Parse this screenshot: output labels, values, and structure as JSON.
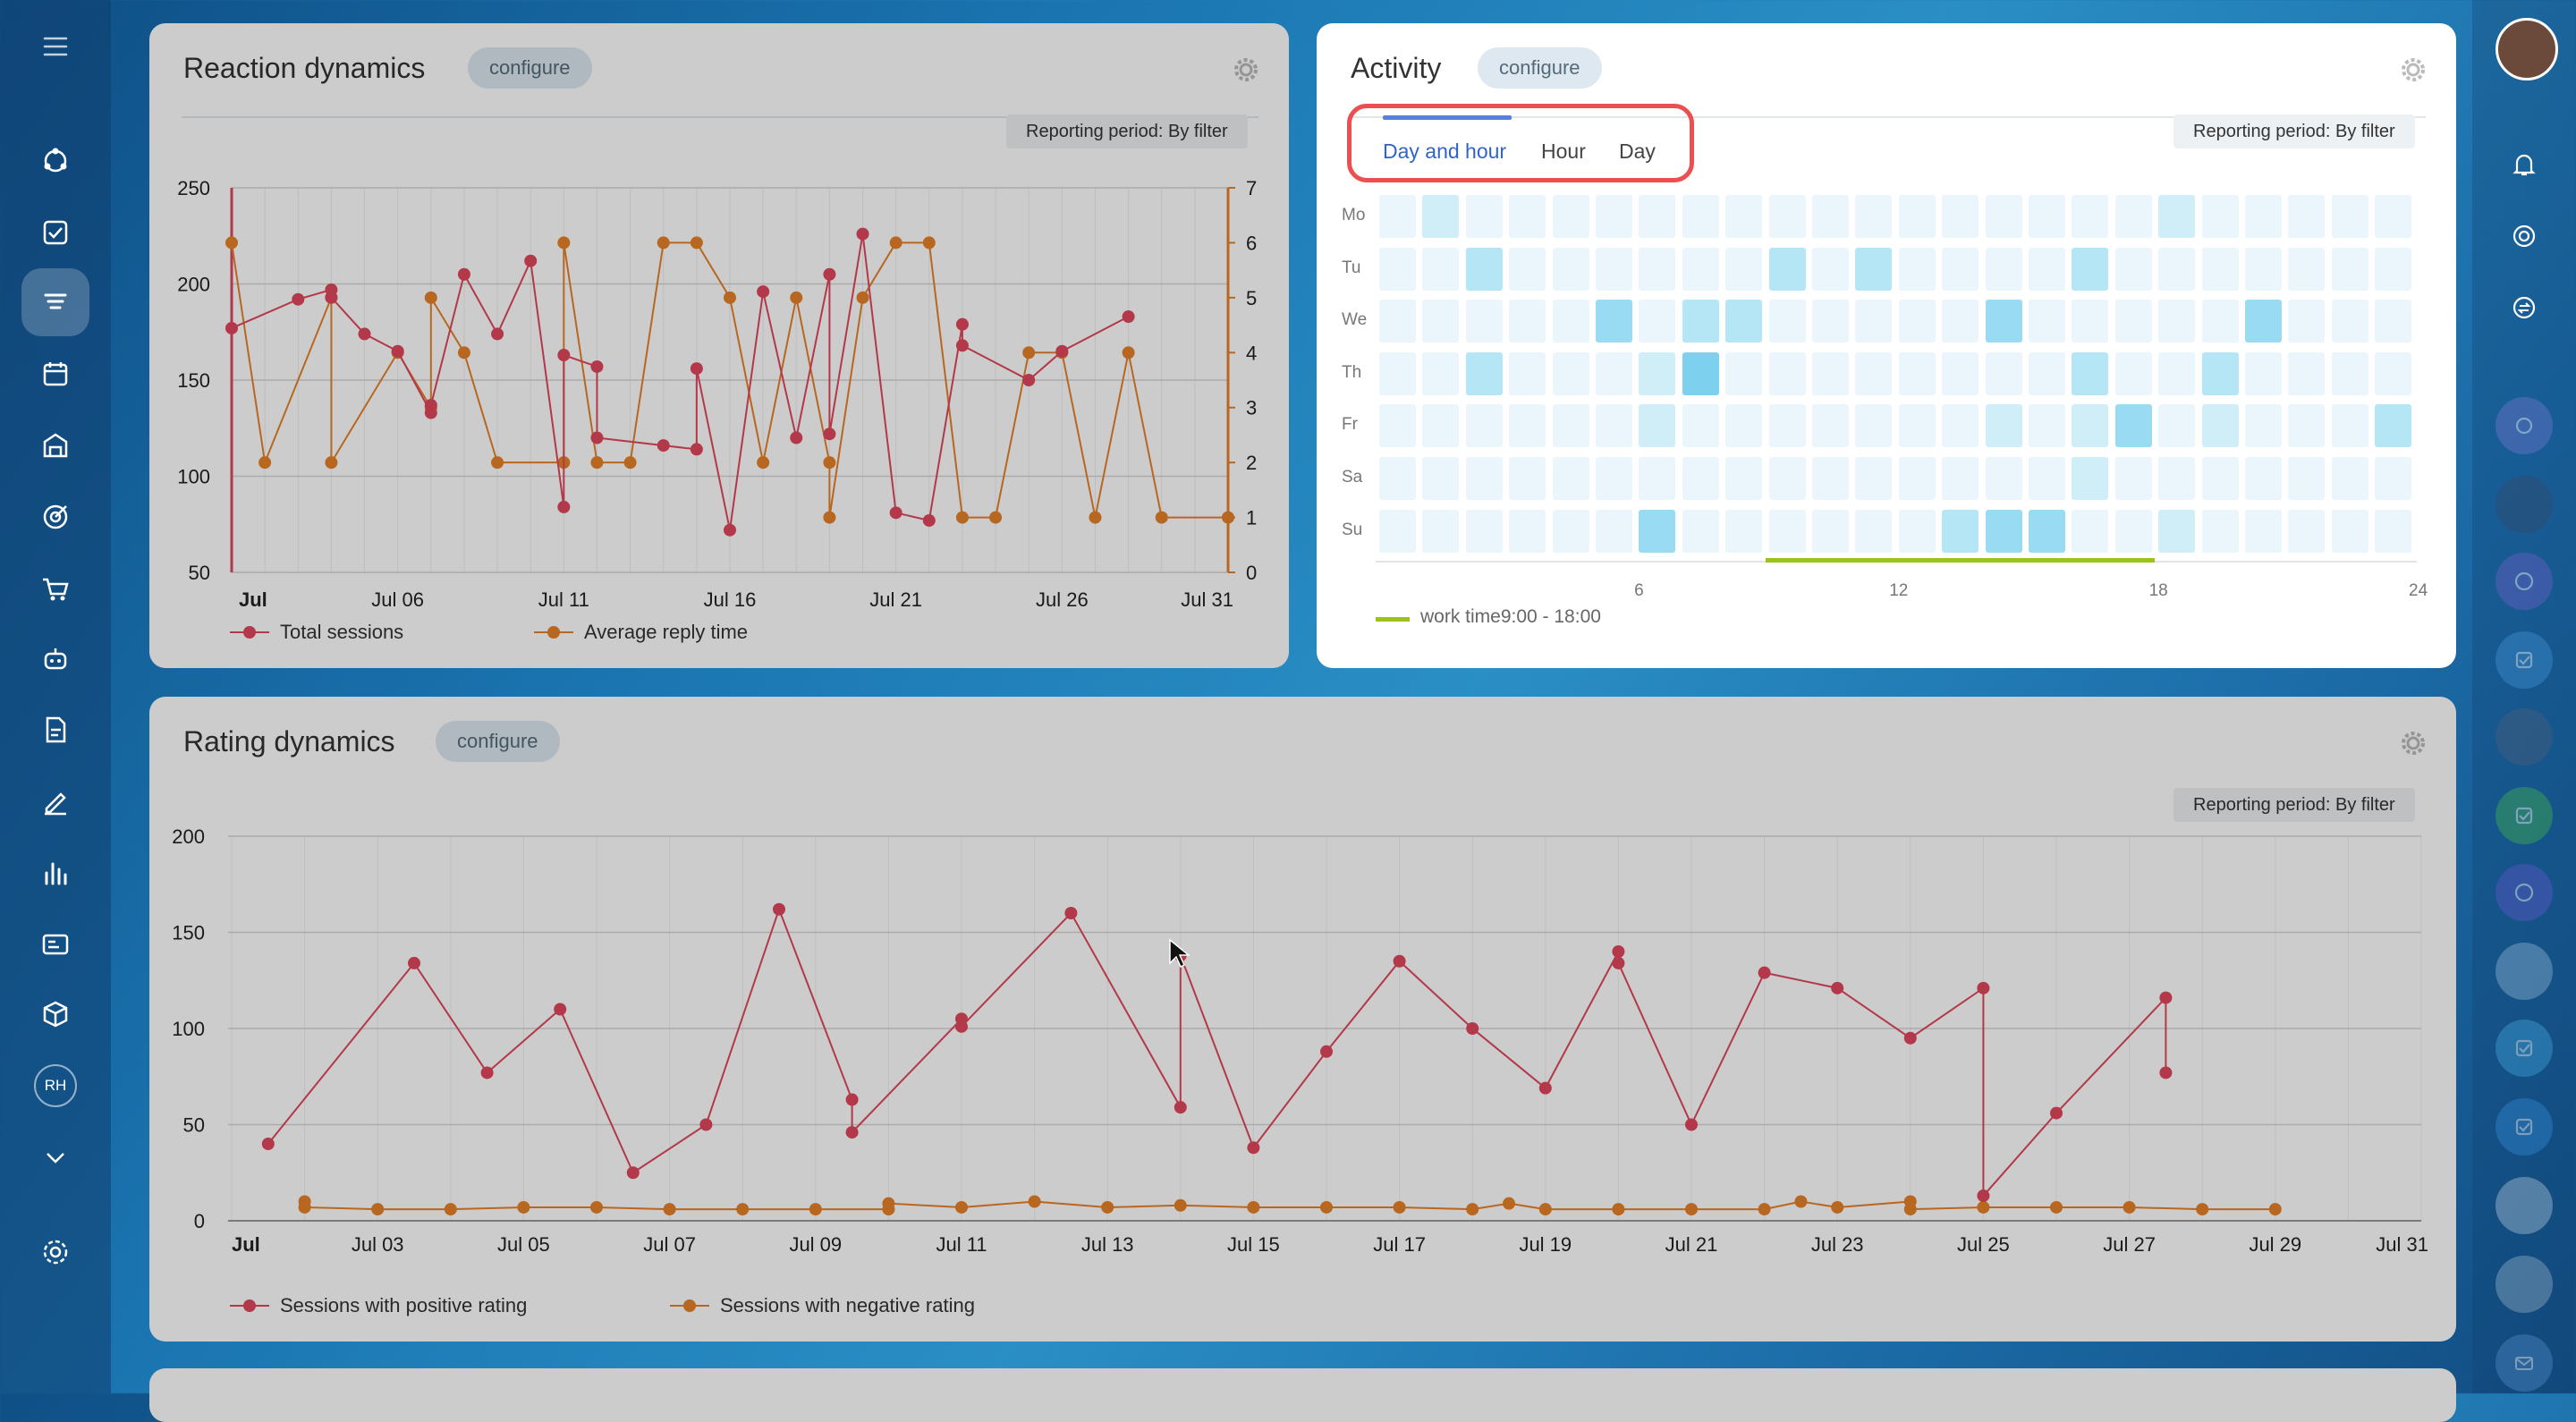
{
  "sidebar": {
    "user_initials": "RH"
  },
  "reaction": {
    "title": "Reaction dynamics",
    "configure": "configure",
    "period": "Reporting period: By filter",
    "legend": [
      "Total sessions",
      "Average reply time"
    ],
    "colors": {
      "total": "#e0475c",
      "reply": "#e7812a"
    }
  },
  "activity": {
    "title": "Activity",
    "configure": "configure",
    "period": "Reporting period: By filter",
    "tabs": [
      "Day and hour",
      "Hour",
      "Day"
    ],
    "days": [
      "Mo",
      "Tu",
      "We",
      "Th",
      "Fr",
      "Sa",
      "Su"
    ],
    "hour_ticks": [
      "6",
      "12",
      "18",
      "24"
    ],
    "work_time_label": "work time9:00 - 18:00",
    "work_hours": [
      9,
      18
    ],
    "cells": [
      [
        0,
        1,
        0,
        0,
        0,
        0,
        0,
        0,
        0,
        0,
        0,
        0,
        0,
        0,
        0,
        0,
        0,
        0,
        1,
        0,
        0,
        0,
        0,
        0
      ],
      [
        0,
        0,
        2,
        0,
        0,
        0,
        0,
        0,
        0,
        2,
        0,
        2,
        0,
        0,
        0,
        0,
        2,
        0,
        0,
        0,
        0,
        0,
        0,
        0
      ],
      [
        0,
        0,
        0,
        0,
        0,
        3,
        0,
        2,
        2,
        0,
        0,
        0,
        0,
        0,
        3,
        0,
        0,
        0,
        0,
        0,
        3,
        0,
        0,
        0
      ],
      [
        0,
        0,
        2,
        0,
        0,
        0,
        1,
        4,
        0,
        0,
        0,
        0,
        0,
        0,
        0,
        0,
        2,
        0,
        0,
        2,
        0,
        0,
        0,
        0
      ],
      [
        0,
        0,
        0,
        0,
        0,
        0,
        1,
        0,
        0,
        0,
        0,
        0,
        0,
        0,
        1,
        0,
        1,
        3,
        0,
        1,
        0,
        0,
        0,
        2
      ],
      [
        0,
        0,
        0,
        0,
        0,
        0,
        0,
        0,
        0,
        0,
        0,
        0,
        0,
        0,
        0,
        0,
        1,
        0,
        0,
        0,
        0,
        0,
        0,
        0
      ],
      [
        0,
        0,
        0,
        0,
        0,
        0,
        3,
        0,
        0,
        0,
        0,
        0,
        0,
        2,
        3,
        3,
        0,
        0,
        1,
        0,
        0,
        0,
        0,
        0
      ]
    ]
  },
  "rating": {
    "title": "Rating dynamics",
    "configure": "configure",
    "period": "Reporting period: By filter",
    "legend": [
      "Sessions with positive rating",
      "Sessions with negative rating"
    ],
    "colors": {
      "positive": "#e0475c",
      "negative": "#e7812a"
    }
  },
  "chart_data": [
    {
      "type": "line",
      "title": "Reaction dynamics",
      "x": [
        1,
        2,
        3,
        4,
        4,
        5,
        6,
        7,
        7,
        8,
        9,
        10,
        11,
        11,
        12,
        12,
        13,
        14,
        15,
        15,
        16,
        17,
        18,
        19,
        19,
        20,
        21,
        22,
        23,
        23,
        24,
        25,
        26,
        27,
        28,
        29,
        30,
        30,
        31
      ],
      "x_tick_labels": [
        "Jul",
        "Jul 06",
        "Jul 11",
        "Jul 16",
        "Jul 21",
        "Jul 26",
        "Jul 31"
      ],
      "ylim_left": [
        50,
        250
      ],
      "ylim_right": [
        0,
        7
      ],
      "series": [
        {
          "name": "Total sessions",
          "axis": "left",
          "values": [
            177,
            null,
            192,
            197,
            193,
            174,
            165,
            133,
            137,
            205,
            174,
            212,
            84,
            163,
            157,
            120,
            null,
            116,
            114,
            156,
            72,
            196,
            120,
            205,
            122,
            226,
            81,
            77,
            179,
            168,
            null,
            150,
            165,
            null,
            183,
            null,
            null,
            null,
            null
          ]
        },
        {
          "name": "Average reply time",
          "axis": "right",
          "values": [
            6,
            2,
            null,
            5,
            2,
            null,
            4,
            3,
            5,
            4,
            2,
            null,
            2,
            6,
            2,
            null,
            2,
            6,
            6,
            null,
            5,
            2,
            5,
            2,
            1,
            5,
            6,
            6,
            1,
            null,
            1,
            4,
            4,
            1,
            4,
            1,
            null,
            null,
            1
          ]
        }
      ]
    },
    {
      "type": "line",
      "title": "Rating dynamics",
      "x_tick_labels": [
        "Jul",
        "Jul 03",
        "Jul 05",
        "Jul 07",
        "Jul 09",
        "Jul 11",
        "Jul 13",
        "Jul 15",
        "Jul 17",
        "Jul 19",
        "Jul 21",
        "Jul 23",
        "Jul 25",
        "Jul 27",
        "Jul 29",
        "Jul 31"
      ],
      "ylim": [
        0,
        200
      ],
      "series": [
        {
          "name": "Sessions with positive rating",
          "points": [
            [
              1.5,
              40
            ],
            [
              3.5,
              134
            ],
            [
              4.5,
              77
            ],
            [
              5.5,
              110
            ],
            [
              6.5,
              25
            ],
            [
              7.5,
              50
            ],
            [
              8.5,
              162
            ],
            [
              9.5,
              63
            ],
            [
              9.5,
              46
            ],
            [
              11,
              105
            ],
            [
              11,
              101
            ],
            [
              12.5,
              160
            ],
            [
              14,
              59
            ],
            [
              14,
              138
            ],
            [
              15,
              38
            ],
            [
              16,
              88
            ],
            [
              17,
              135
            ],
            [
              18,
              100
            ],
            [
              19,
              69
            ],
            [
              20,
              140
            ],
            [
              20,
              134
            ],
            [
              21,
              50
            ],
            [
              22,
              129
            ],
            [
              23,
              121
            ],
            [
              24,
              95
            ],
            [
              25,
              121
            ],
            [
              25,
              13
            ],
            [
              26,
              56
            ],
            [
              27.5,
              116
            ],
            [
              27.5,
              77
            ]
          ]
        },
        {
          "name": "Sessions with negative rating",
          "points": [
            [
              2,
              10
            ],
            [
              2,
              7
            ],
            [
              3,
              6
            ],
            [
              4,
              6
            ],
            [
              5,
              7
            ],
            [
              6,
              7
            ],
            [
              7,
              6
            ],
            [
              8,
              6
            ],
            [
              9,
              6
            ],
            [
              10,
              6
            ],
            [
              10,
              9
            ],
            [
              11,
              7
            ],
            [
              12,
              10
            ],
            [
              13,
              7
            ],
            [
              14,
              8
            ],
            [
              15,
              7
            ],
            [
              16,
              7
            ],
            [
              17,
              7
            ],
            [
              18,
              6
            ],
            [
              18.5,
              9
            ],
            [
              19,
              6
            ],
            [
              20,
              6
            ],
            [
              21,
              6
            ],
            [
              22,
              6
            ],
            [
              22.5,
              10
            ],
            [
              23,
              7
            ],
            [
              24,
              10
            ],
            [
              24,
              6
            ],
            [
              25,
              7
            ],
            [
              26,
              7
            ],
            [
              27,
              7
            ],
            [
              28,
              6
            ],
            [
              29,
              6
            ]
          ]
        }
      ]
    }
  ]
}
